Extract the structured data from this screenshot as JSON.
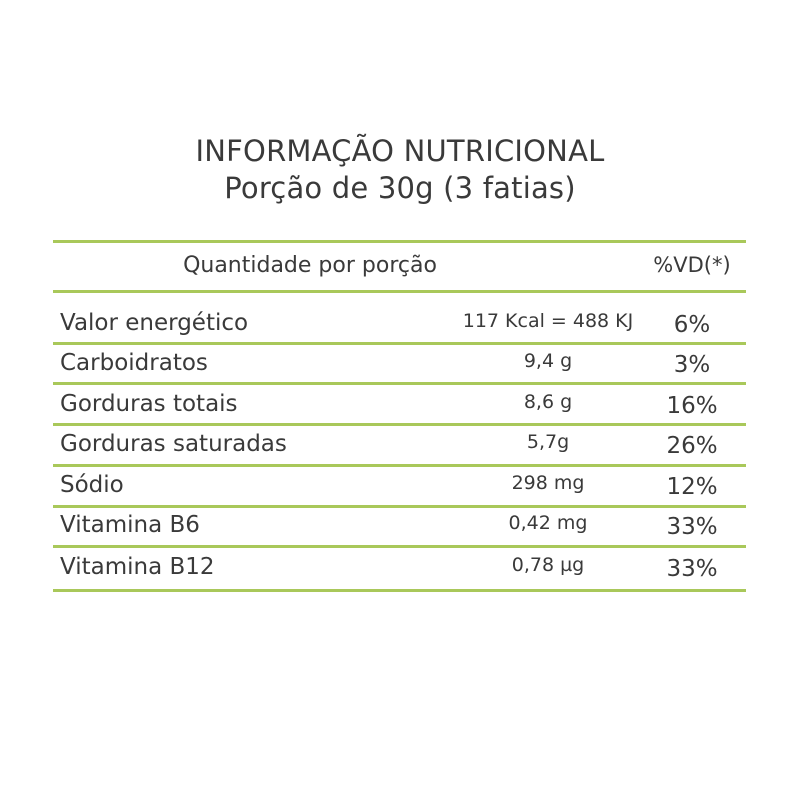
{
  "title": {
    "line1": "INFORMAÇÃO NUTRICIONAL",
    "line2": "Porção de 30g (3 fatias)"
  },
  "header": {
    "quantity": "Quantidade por porção",
    "daily_value": "%VD(*)"
  },
  "rows": [
    {
      "name": "Valor energético",
      "amount": "117 Kcal = 488 KJ",
      "dv": "6%"
    },
    {
      "name": "Carboidratos",
      "amount": "9,4 g",
      "dv": "3%"
    },
    {
      "name": "Gorduras totais",
      "amount": "8,6 g",
      "dv": "16%"
    },
    {
      "name": "Gorduras saturadas",
      "amount": "5,7g",
      "dv": "26%"
    },
    {
      "name": "Sódio",
      "amount": "298 mg",
      "dv": "12%"
    },
    {
      "name": "Vitamina B6",
      "amount": "0,42 mg",
      "dv": "33%"
    },
    {
      "name": "Vitamina B12",
      "amount": "0,78 µg",
      "dv": "33%"
    }
  ],
  "colors": {
    "rule": "#a9c85a",
    "text": "#3a3a3a"
  }
}
